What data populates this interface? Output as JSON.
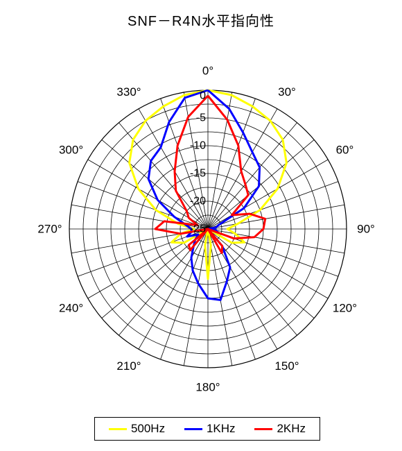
{
  "title": "SNF－R4N水平指向性",
  "chart_data": {
    "type": "polar-line",
    "title": "SNF－R4N水平指向性",
    "angle_ticks": [
      {
        "angle": 0,
        "label": "0°"
      },
      {
        "angle": 30,
        "label": "30°"
      },
      {
        "angle": 60,
        "label": "60°"
      },
      {
        "angle": 90,
        "label": "90°"
      },
      {
        "angle": 120,
        "label": "120°"
      },
      {
        "angle": 150,
        "label": "150°"
      },
      {
        "angle": 180,
        "label": "180°"
      },
      {
        "angle": 210,
        "label": "210°"
      },
      {
        "angle": 240,
        "label": "240°"
      },
      {
        "angle": 270,
        "label": "270°"
      },
      {
        "angle": 300,
        "label": "300°"
      },
      {
        "angle": 330,
        "label": "330°"
      }
    ],
    "radial_ticks": [
      {
        "value": 0,
        "label": "0"
      },
      {
        "value": -5,
        "label": "-5"
      },
      {
        "value": -10,
        "label": "-10"
      },
      {
        "value": -15,
        "label": "-15"
      },
      {
        "value": -20,
        "label": "-20"
      },
      {
        "value": -25,
        "label": "-25"
      }
    ],
    "r_range": [
      -25,
      0
    ],
    "ring_step_db": 2.5,
    "spoke_step_deg": 10,
    "grid": true,
    "legend_position": "bottom",
    "angles": [
      0,
      10,
      20,
      30,
      40,
      50,
      60,
      70,
      80,
      90,
      100,
      110,
      120,
      130,
      140,
      150,
      160,
      170,
      180,
      190,
      200,
      210,
      220,
      230,
      240,
      250,
      260,
      270,
      280,
      290,
      300,
      310,
      320,
      330,
      340,
      350
    ],
    "series": [
      {
        "name": "500Hz",
        "color": "#ffff00",
        "values": [
          0,
          -0.5,
          -1.5,
          -2.5,
          -4,
          -6.5,
          -10.5,
          -15,
          -19.5,
          -21.5,
          -20,
          -18,
          -20,
          -25,
          -25,
          -25,
          -25,
          -22,
          -16,
          -22,
          -25,
          -25,
          -25,
          -25,
          -20,
          -18,
          -20,
          -22.5,
          -19.5,
          -15,
          -10.5,
          -6.5,
          -4,
          -2.5,
          -1.5,
          -0.5
        ]
      },
      {
        "name": "1KHz",
        "color": "#0000ff",
        "values": [
          0,
          -3,
          -6.5,
          -9,
          -10.5,
          -13,
          -17.5,
          -23,
          -23.5,
          -25,
          -23.5,
          -23,
          -25,
          -25,
          -21,
          -17,
          -15,
          -12,
          -12.5,
          -15,
          -17,
          -19,
          -21,
          -22,
          -23,
          -21,
          -22,
          -22,
          -21,
          -18.5,
          -14.5,
          -11,
          -9,
          -8,
          -4.5,
          -1
        ]
      },
      {
        "name": "2KHz",
        "color": "#ff0000",
        "values": [
          -1,
          -5,
          -9,
          -13,
          -14.5,
          -15.5,
          -20,
          -17,
          -14.5,
          -15,
          -16.5,
          -20,
          -25,
          -25,
          -21,
          -20,
          -25,
          -25,
          -25,
          -25,
          -25,
          -25,
          -20,
          -20.5,
          -25,
          -25,
          -20,
          -15.5,
          -17,
          -23,
          -21,
          -20,
          -16,
          -13,
          -9,
          -4.5
        ]
      }
    ]
  }
}
